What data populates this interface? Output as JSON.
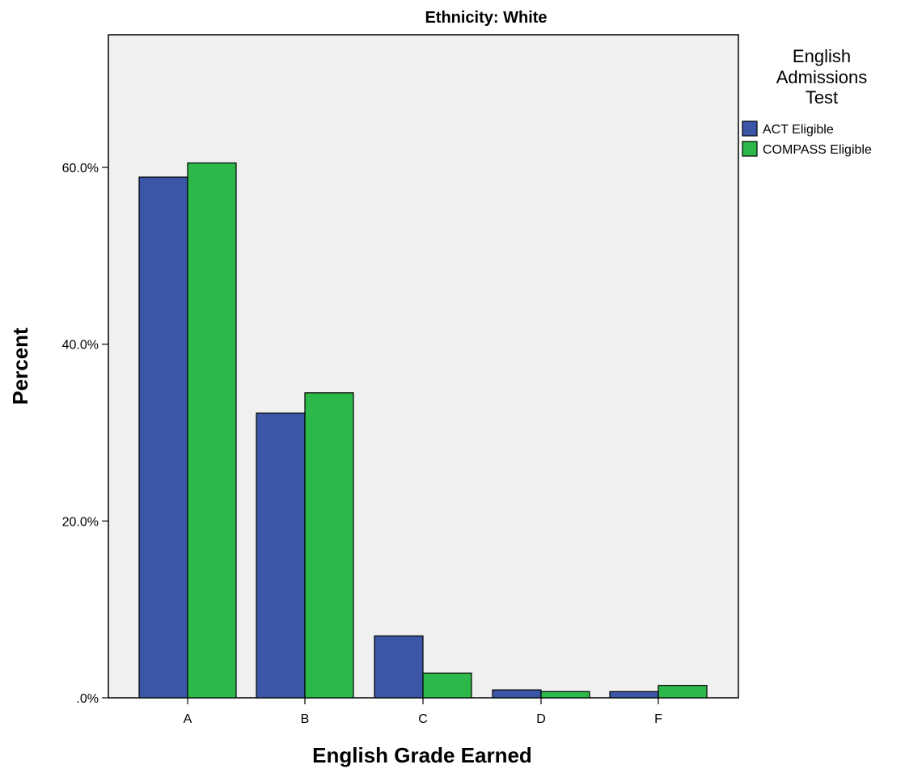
{
  "chart_data": {
    "type": "bar",
    "title": "Ethnicity: White",
    "xlabel": "English Grade Earned",
    "ylabel": "Percent",
    "categories": [
      "A",
      "B",
      "C",
      "D",
      "F"
    ],
    "series": [
      {
        "name": "ACT Eligible",
        "values": [
          58.9,
          32.2,
          7.0,
          0.9,
          0.7
        ],
        "color": "#3b56a6"
      },
      {
        "name": "COMPASS Eligible",
        "values": [
          60.5,
          34.5,
          2.8,
          0.7,
          1.4
        ],
        "color": "#2db84a"
      }
    ],
    "ylim": [
      0,
      75
    ],
    "yticks": [
      0,
      20,
      40,
      60
    ],
    "ytick_labels": [
      ".0%",
      "20.0%",
      "40.0%",
      "60.0%"
    ],
    "grid": false,
    "plot_background": "#f0f0f0",
    "legend": {
      "title_lines": [
        "English",
        "Admissions",
        "Test"
      ],
      "placement": "right-top"
    }
  }
}
